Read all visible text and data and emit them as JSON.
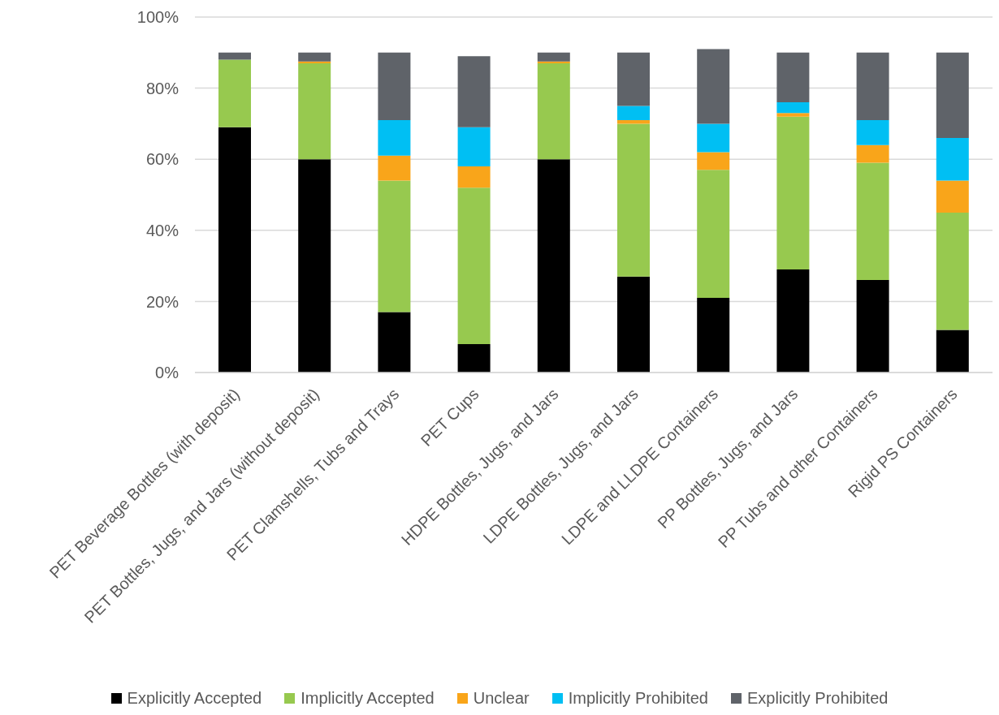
{
  "chart_data": {
    "type": "bar",
    "stacked": true,
    "categories": [
      "PET Beverage Bottles (with deposit)",
      "PET Bottles, Jugs, and Jars (without deposit)",
      "PET Clamshells, Tubs and Trays",
      "PET Cups",
      "HDPE Bottles, Jugs, and Jars",
      "LDPE Bottles, Jugs, and Jars",
      "LDPE and LLDPE Containers",
      "PP Bottles, Jugs, and Jars",
      "PP Tubs and other Containers",
      "Rigid PS Containers"
    ],
    "series": [
      {
        "name": "Explicitly Accepted",
        "color": "#000000",
        "values": [
          69,
          60,
          17,
          8,
          60,
          27,
          21,
          29,
          26,
          12
        ]
      },
      {
        "name": "Implicitly Accepted",
        "color": "#97c94f",
        "values": [
          19,
          27,
          37,
          44,
          27,
          43,
          36,
          43,
          33,
          33
        ]
      },
      {
        "name": "Unclear",
        "color": "#f9a51a",
        "values": [
          0,
          0.5,
          7,
          6,
          0.5,
          1,
          5,
          1,
          5,
          9
        ]
      },
      {
        "name": "Implicitly Prohibited",
        "color": "#00bff3",
        "values": [
          0,
          0,
          10,
          11,
          0,
          4,
          8,
          3,
          7,
          12
        ]
      },
      {
        "name": "Explicitly Prohibited",
        "color": "#5f6369",
        "values": [
          2,
          2.5,
          19,
          20,
          2.5,
          15,
          21,
          14,
          19,
          24
        ]
      }
    ],
    "ylim": [
      0,
      100
    ],
    "yticks": [
      {
        "value": 0,
        "label": "0%"
      },
      {
        "value": 20,
        "label": "20%"
      },
      {
        "value": 40,
        "label": "40%"
      },
      {
        "value": 60,
        "label": "60%"
      },
      {
        "value": 80,
        "label": "80%"
      },
      {
        "value": 100,
        "label": "100%"
      }
    ],
    "grid": "y",
    "legend": "bottom"
  }
}
